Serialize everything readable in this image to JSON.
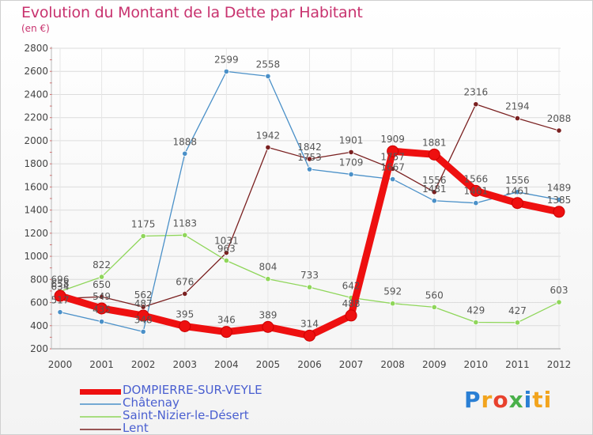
{
  "header": {
    "title": "Evolution du Montant de la Dette par Habitant",
    "unit": "(en €)"
  },
  "logo": {
    "text": "Proxiti",
    "letters": [
      "P",
      "r",
      "o",
      "x",
      "i",
      "ti"
    ]
  },
  "chart_data": {
    "type": "line",
    "title": "Evolution du Montant de la Dette par Habitant",
    "subtitle": "(en €)",
    "xlabel": "",
    "ylabel": "",
    "ylim": [
      200,
      2800
    ],
    "yticks": [
      200,
      400,
      600,
      800,
      1000,
      1200,
      1400,
      1600,
      1800,
      2000,
      2200,
      2400,
      2600,
      2800
    ],
    "grid": true,
    "categories": [
      "2000",
      "2001",
      "2002",
      "2003",
      "2004",
      "2005",
      "2006",
      "2007",
      "2008",
      "2009",
      "2010",
      "2011",
      "2012"
    ],
    "series": [
      {
        "name": "DOMPIERRE-SUR-VEYLE",
        "color": "#ee1010",
        "values": [
          658,
          549,
          487,
          395,
          346,
          389,
          314,
          488,
          1909,
          1881,
          1566,
          1461,
          1385
        ],
        "labels": [
          "658",
          "549",
          "487",
          "395",
          "346",
          "389",
          "314",
          "488",
          "1909",
          "1881",
          "1566",
          "1461",
          "1385"
        ]
      },
      {
        "name": "Châtenay",
        "color": "#4a90c8",
        "values": [
          517,
          435,
          348,
          1888,
          2599,
          2558,
          1753,
          1709,
          1667,
          1481,
          1461,
          1556,
          1489
        ],
        "labels": [
          "517",
          "435",
          "348",
          "1888",
          "2599",
          "2558",
          "1753",
          "1709",
          "1667",
          "1481",
          "1461",
          "1556",
          "1489"
        ]
      },
      {
        "name": "Saint-Nizier-le-Désert",
        "color": "#8fd65a",
        "values": [
          696,
          822,
          1175,
          1183,
          963,
          804,
          733,
          642,
          592,
          560,
          429,
          427,
          603
        ],
        "labels": [
          "696",
          "822",
          "1175",
          "1183",
          "963",
          "804",
          "733",
          "642",
          "592",
          "560",
          "429",
          "427",
          "603"
        ]
      },
      {
        "name": "Lent",
        "color": "#7a2020",
        "values": [
          634,
          650,
          562,
          676,
          1031,
          1942,
          1842,
          1901,
          1757,
          1556,
          2316,
          2194,
          2088
        ],
        "labels": [
          "634",
          "650",
          "562",
          "676",
          "1031",
          "1942",
          "1842",
          "1901",
          "1757",
          "1556",
          "2316",
          "2194",
          "2088"
        ]
      }
    ]
  }
}
